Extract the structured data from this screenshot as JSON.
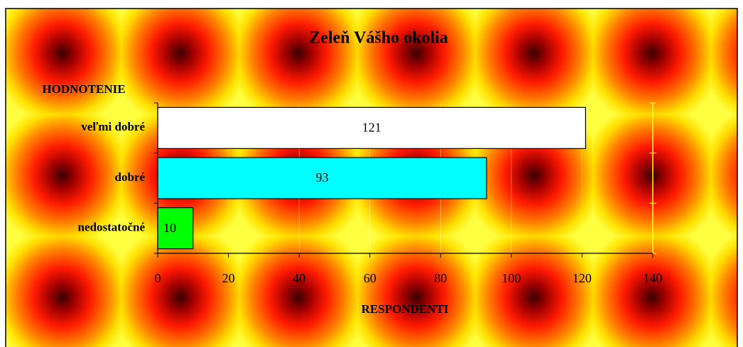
{
  "chart_data": {
    "type": "bar",
    "orientation": "horizontal",
    "title": "Zeleň Vášho okolia",
    "y_label": "HODNOTENIE",
    "x_label": "RESPONDENTI",
    "categories": [
      "veľmi dobré",
      "dobré",
      "nedostatočné"
    ],
    "values": [
      121,
      93,
      10
    ],
    "colors": [
      "#ffffff",
      "#00ffff",
      "#00ff00"
    ],
    "xlim": [
      0,
      140
    ],
    "xticks": [
      0,
      20,
      40,
      60,
      80,
      100,
      120,
      140
    ],
    "grid": true
  }
}
